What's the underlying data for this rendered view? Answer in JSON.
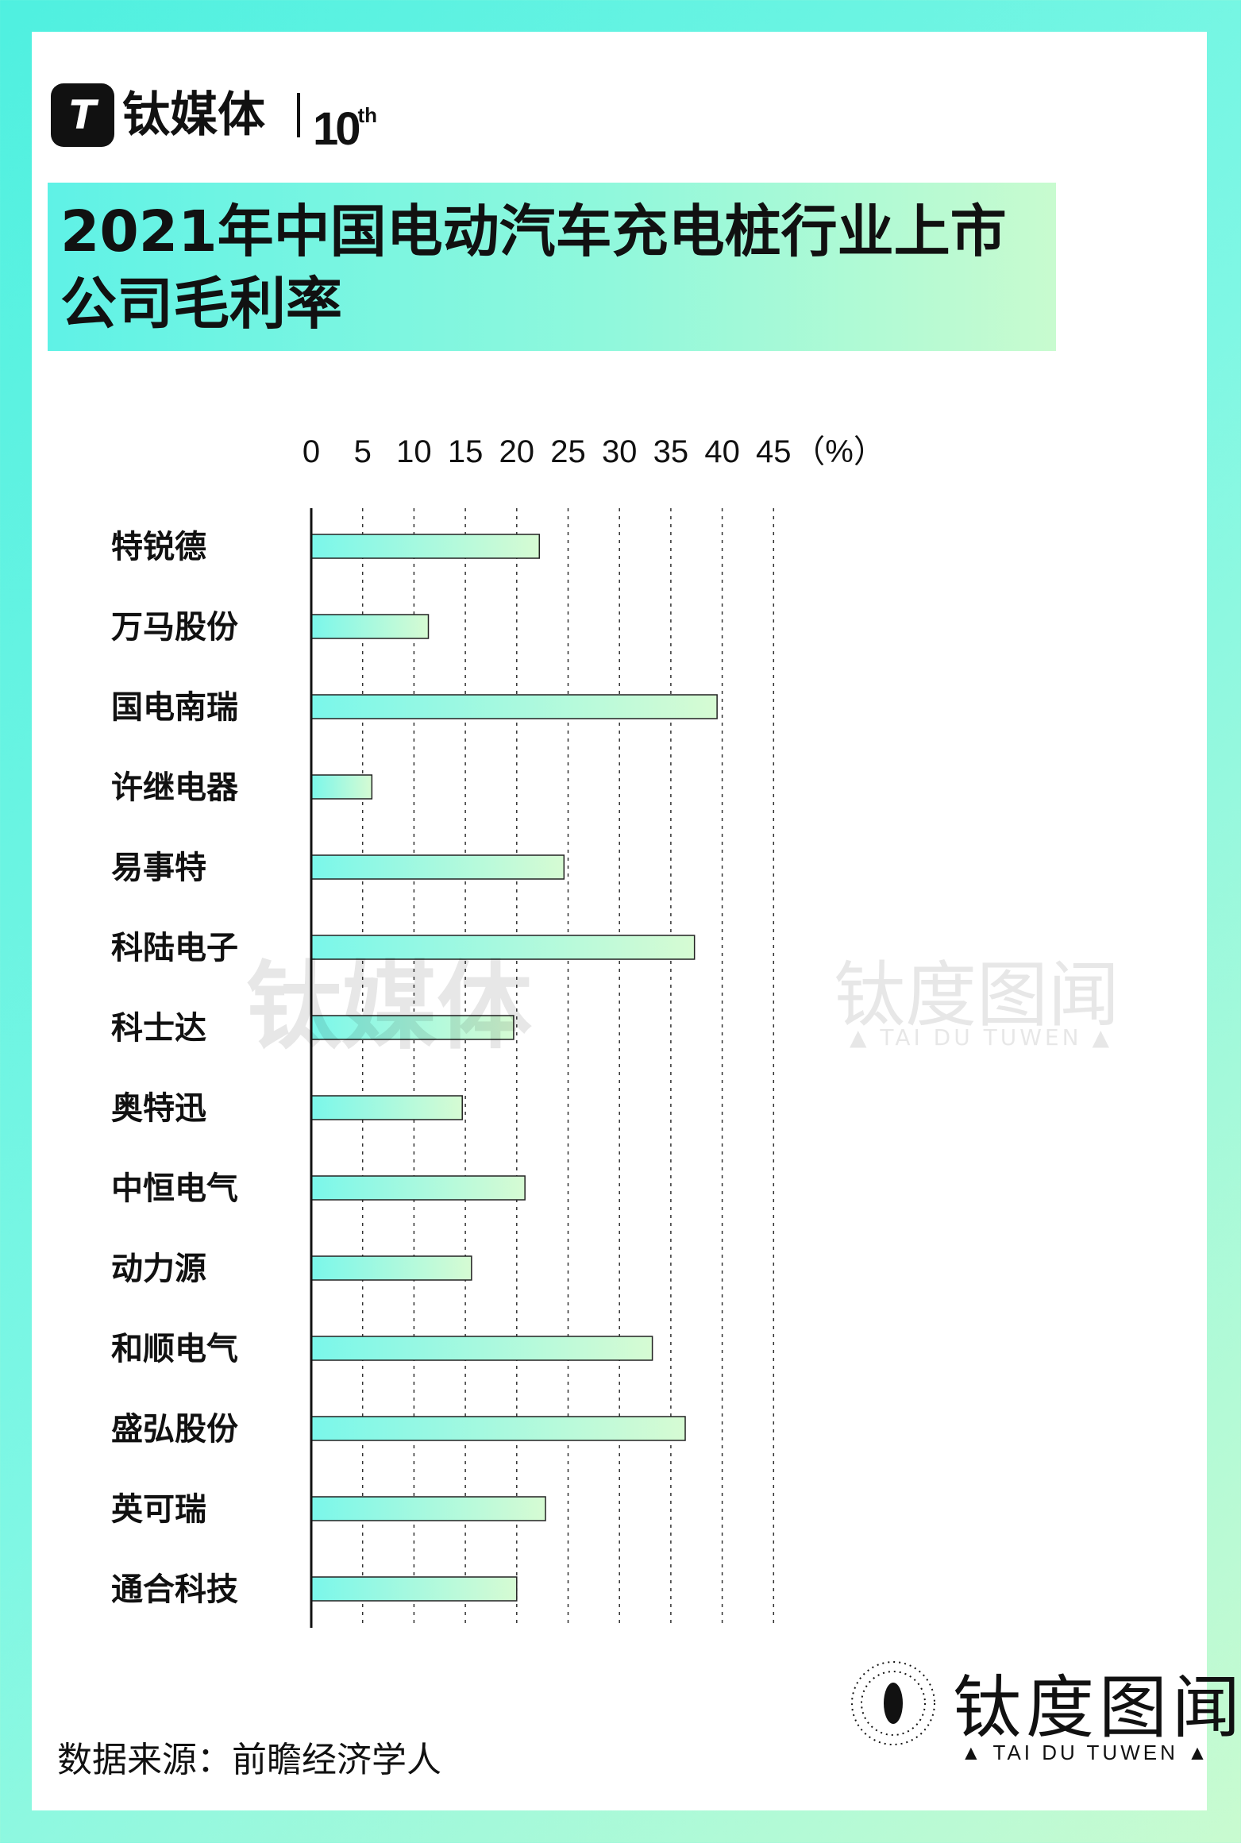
{
  "brand": {
    "mark": "T",
    "name": "钛媒体",
    "anniversary_number": "10",
    "anniversary_suffix": "th"
  },
  "title": "2021年中国电动汽车充电桩行业上市公司毛利率",
  "source": "数据来源：前瞻经济学人",
  "watermark": {
    "left": "钛媒体",
    "right": "钛度图闻",
    "sub": "▲ TAI DU TUWEN ▲"
  },
  "footer_brand": {
    "name": "钛度图闻",
    "sub": "▲ TAI DU TUWEN ▲"
  },
  "colors": {
    "bar_start": "#7af7ea",
    "bar_end": "#d6fbd3",
    "bar_stroke": "#222222",
    "grid": "#333333"
  },
  "chart_data": {
    "type": "bar",
    "orientation": "horizontal",
    "categories": [
      "特锐德",
      "万马股份",
      "国电南瑞",
      "许继电器",
      "易事特",
      "科陆电子",
      "科士达",
      "奥特迅",
      "中恒电气",
      "动力源",
      "和顺电气",
      "盛弘股份",
      "英可瑞",
      "通合科技"
    ],
    "values": [
      22.2,
      11.4,
      39.5,
      5.9,
      24.6,
      37.3,
      19.7,
      14.7,
      20.8,
      15.6,
      33.2,
      36.4,
      22.8,
      20.0
    ],
    "ticks": [
      0,
      5,
      10,
      15,
      20,
      25,
      30,
      35,
      40,
      45
    ],
    "unit_label": "（%）",
    "xlim": [
      0,
      45
    ],
    "grid": "dashed vertical",
    "axis_position": "top"
  }
}
